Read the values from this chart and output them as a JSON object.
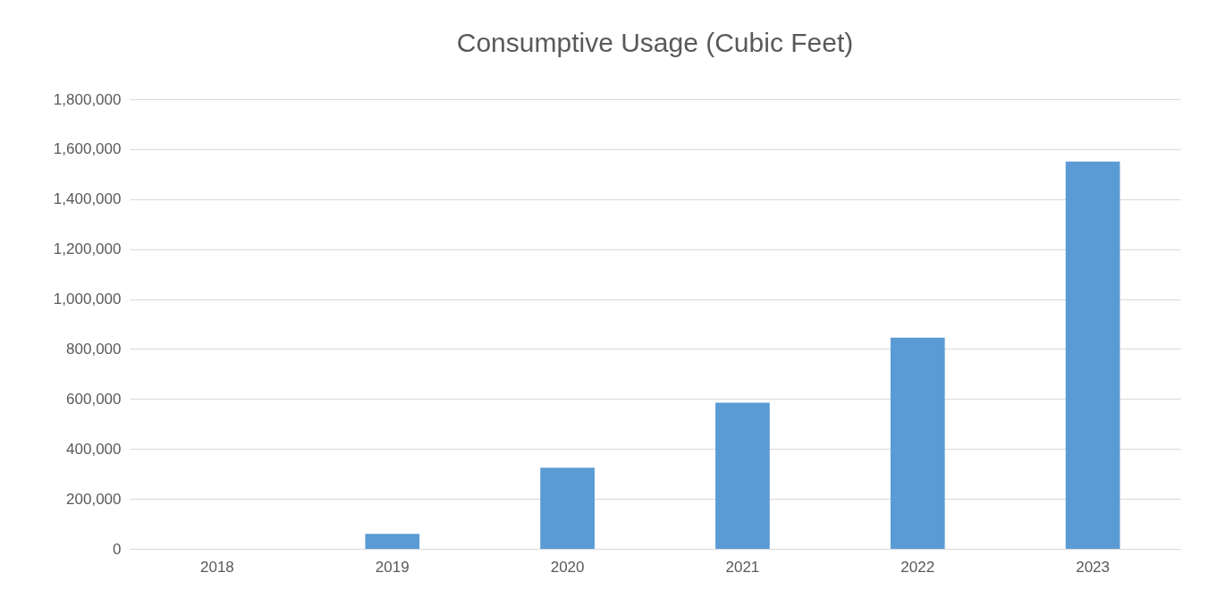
{
  "chart_data": {
    "type": "bar",
    "title": "Consumptive Usage (Cubic Feet)",
    "categories": [
      "2018",
      "2019",
      "2020",
      "2021",
      "2022",
      "2023"
    ],
    "values": [
      0,
      60000,
      325000,
      585000,
      845000,
      1550000
    ],
    "color": "#5b9bd5",
    "ylim": [
      0,
      1800000
    ],
    "yticks": [
      0,
      {
        "value": 200000,
        "label": "200,000"
      },
      {
        "value": 400000,
        "label": "400,000"
      },
      {
        "value": 600000,
        "label": "600,000"
      },
      {
        "value": 800000,
        "label": "800,000"
      },
      {
        "value": 1000000,
        "label": "1,000,000"
      },
      {
        "value": 1200000,
        "label": "1,200,000"
      },
      {
        "value": 1400000,
        "label": "1,400,000"
      },
      {
        "value": 1600000,
        "label": "1,600,000"
      },
      {
        "value": 1800000,
        "label": "1,800,000"
      }
    ],
    "grid": "y"
  }
}
